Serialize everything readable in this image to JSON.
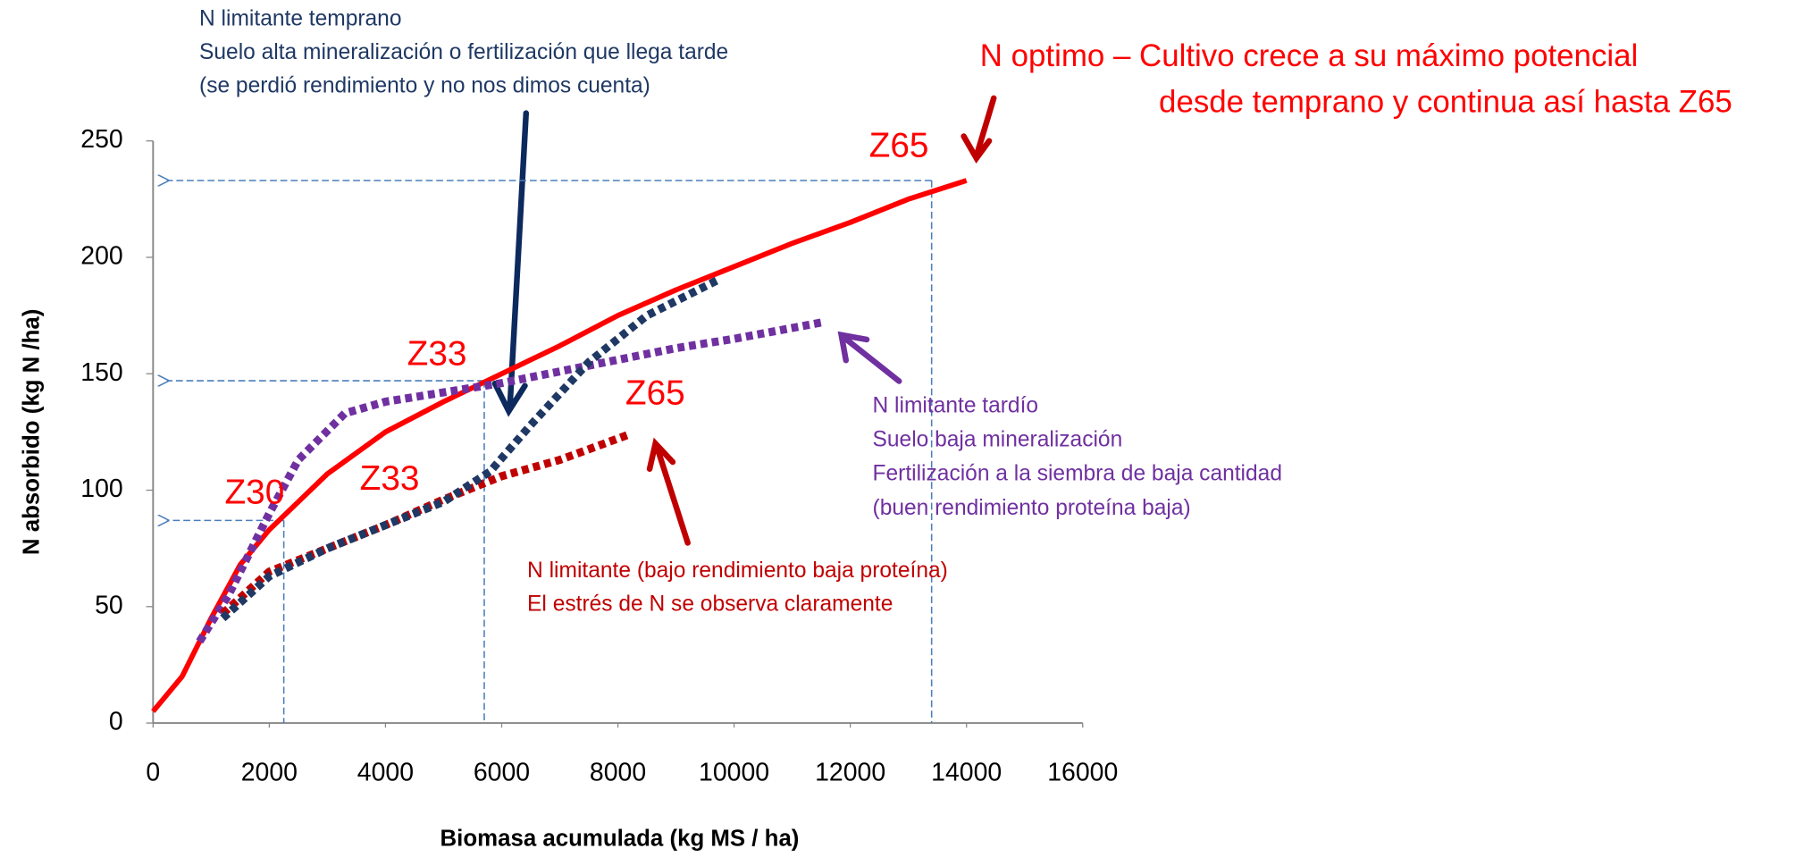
{
  "chart_data": {
    "type": "line",
    "xlabel": "Biomasa acumulada  (kg MS / ha)",
    "ylabel": "N absorbido  (kg N /ha)",
    "xlim": [
      0,
      16000
    ],
    "ylim": [
      0,
      250
    ],
    "xticks": [
      0,
      2000,
      4000,
      6000,
      8000,
      10000,
      12000,
      14000,
      16000
    ],
    "yticks": [
      0,
      50,
      100,
      150,
      200,
      250
    ],
    "series": [
      {
        "color": "#ff0000",
        "style": "solid",
        "x": [
          0,
          500,
          1000,
          1500,
          2000,
          2500,
          3000,
          4000,
          5000,
          6000,
          7000,
          8000,
          9000,
          10000,
          11000,
          12000,
          13000,
          14000
        ],
        "values": [
          5,
          20,
          45,
          68,
          83,
          95,
          107,
          125,
          138,
          150,
          162,
          175,
          186,
          196,
          206,
          215,
          225,
          233
        ]
      },
      {
        "color": "#7030a0",
        "style": "dotted",
        "x": [
          800,
          1300,
          2000,
          2500,
          3300,
          4000,
          5000,
          6000,
          7000,
          8000,
          9000,
          10000,
          11500
        ],
        "values": [
          35,
          55,
          90,
          113,
          133,
          138,
          142,
          146,
          151,
          156,
          161,
          165,
          172
        ]
      },
      {
        "color": "#c00000",
        "style": "dotted",
        "x": [
          1200,
          2000,
          3000,
          4000,
          5000,
          6000,
          7000,
          8200
        ],
        "values": [
          47,
          65,
          75,
          85,
          96,
          106,
          113,
          124
        ]
      },
      {
        "color": "#1f3864",
        "style": "dotted",
        "x": [
          1200,
          2000,
          3000,
          4000,
          5000,
          5800,
          6500,
          7500,
          8500,
          9700
        ],
        "values": [
          45,
          63,
          75,
          85,
          95,
          108,
          128,
          155,
          175,
          190
        ]
      }
    ],
    "guides": [
      {
        "x": 2250,
        "y": 87
      },
      {
        "x": 5700,
        "y": 147
      },
      {
        "x": 13400,
        "y": 233
      }
    ],
    "annotations": [
      {
        "color": "#1f3864",
        "lines": [
          "N limitante temprano",
          "Suelo alta mineralización o fertilización que llega tarde",
          "(se perdió rendimiento y no nos dimos cuenta)"
        ]
      },
      {
        "color": "#ff0000",
        "lines": [
          "N optimo – Cultivo crece a su máximo potencial",
          "desde temprano y continua así hasta Z65"
        ]
      },
      {
        "color": "#7030a0",
        "lines": [
          "N limitante tardío",
          "Suelo baja mineralización",
          "Fertilización a la siembra de baja cantidad",
          "(buen rendimiento proteína baja)"
        ]
      },
      {
        "color": "#c00000",
        "lines": [
          "N limitante (bajo rendimiento baja proteína)",
          "El estrés de N se observa  claramente"
        ]
      }
    ],
    "stage_labels": [
      {
        "text": "Z65",
        "color": "#ff0000"
      },
      {
        "text": "Z33",
        "color": "#ff0000"
      },
      {
        "text": "Z65",
        "color": "#ff0000"
      },
      {
        "text": "Z30",
        "color": "#ff0000"
      },
      {
        "text": "Z33",
        "color": "#ff0000"
      }
    ]
  }
}
